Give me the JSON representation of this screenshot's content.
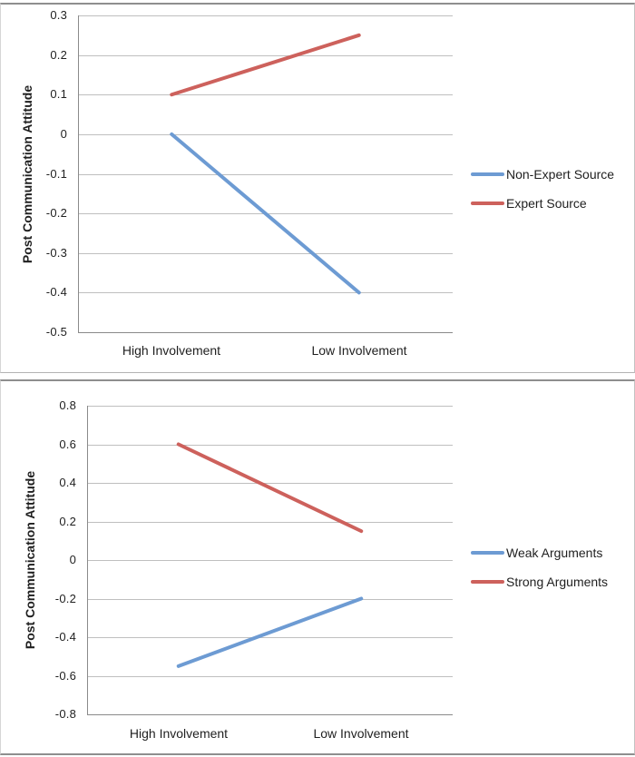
{
  "page": {
    "background": "#ffffff",
    "frame_border_color": "#8e8e8e"
  },
  "colors": {
    "series_blue": "#6d9bd3",
    "series_red": "#cd615c",
    "gridline": "#bfbfbf",
    "axis": "#8a8a8a",
    "text": "#1f1f1f"
  },
  "chart_data": [
    {
      "type": "line",
      "title": "",
      "categories": [
        "High Involvement",
        "Low Involvement"
      ],
      "series": [
        {
          "name": "Non-Expert Source",
          "color": "#6d9bd3",
          "values": [
            0,
            -0.4
          ]
        },
        {
          "name": "Expert Source",
          "color": "#cd615c",
          "values": [
            0.1,
            0.25
          ]
        }
      ],
      "xlabel": "",
      "ylabel": "Post Communication Attitude",
      "ylim": [
        -0.5,
        0.3
      ],
      "ytick_step": 0.1,
      "ytick_labels": [
        "0.3",
        "0.2",
        "0.1",
        "0",
        "-0.1",
        "-0.2",
        "-0.3",
        "-0.4",
        "-0.5"
      ],
      "grid": true,
      "legend_position": "right-center"
    },
    {
      "type": "line",
      "title": "",
      "categories": [
        "High Involvement",
        "Low Involvement"
      ],
      "series": [
        {
          "name": "Weak Arguments",
          "color": "#6d9bd3",
          "values": [
            -0.55,
            -0.2
          ]
        },
        {
          "name": "Strong Arguments",
          "color": "#cd615c",
          "values": [
            0.6,
            0.15
          ]
        }
      ],
      "xlabel": "",
      "ylabel": "Post Communication Attitude",
      "ylim": [
        -0.8,
        0.8
      ],
      "ytick_step": 0.2,
      "ytick_labels": [
        "0.8",
        "0.6",
        "0.4",
        "0.2",
        "0",
        "-0.2",
        "-0.4",
        "-0.6",
        "-0.8"
      ],
      "grid": true,
      "legend_position": "right-center"
    }
  ]
}
